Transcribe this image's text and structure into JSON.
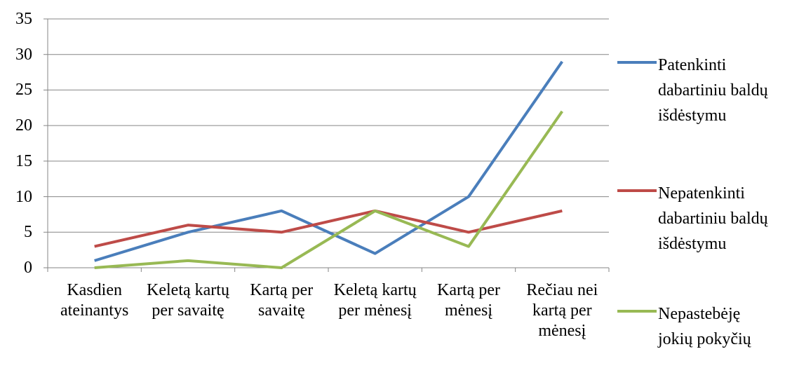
{
  "chart_data": {
    "type": "line",
    "categories": [
      "Kasdien ateinantys",
      "Keletą kartų per savaitę",
      "Kartą per savaitę",
      "Keletą kartų per mėnesį",
      "Kartą per mėnesį",
      "Rečiau nei kartą per mėnesį"
    ],
    "series": [
      {
        "name": "Patenkinti dabartiniu baldų išdėstymu",
        "color": "#4a7ebb",
        "values": [
          1,
          5,
          8,
          2,
          10,
          29
        ]
      },
      {
        "name": "Nepatenkinti dabartiniu baldų išdėstymu",
        "color": "#be4b48",
        "values": [
          3,
          6,
          5,
          8,
          5,
          8
        ]
      },
      {
        "name": "Nepastebėję jokių pokyčių",
        "color": "#98b954",
        "values": [
          0,
          1,
          0,
          8,
          3,
          22
        ]
      }
    ],
    "ylim": [
      0,
      35
    ],
    "yticks": [
      0,
      5,
      10,
      15,
      20,
      25,
      30,
      35
    ],
    "grid": true,
    "legend": "right"
  }
}
